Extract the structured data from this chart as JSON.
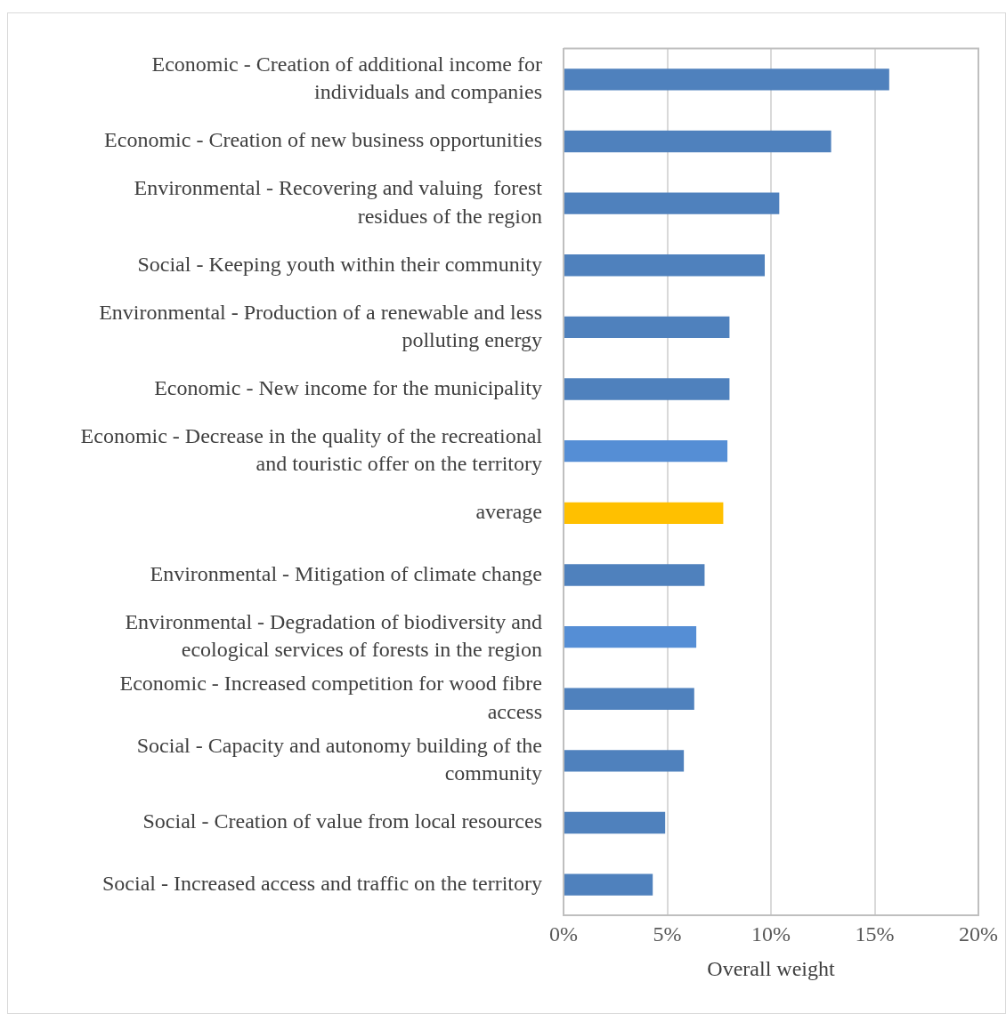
{
  "chart_data": {
    "type": "bar",
    "orientation": "horizontal",
    "xlabel": "Overall weight",
    "categories": [
      "Economic - Creation of additional income for individuals and companies",
      "Economic - Creation of new business opportunities",
      "Environmental - Recovering and valuing  forest residues of the region",
      "Social - Keeping youth within their community",
      "Environmental - Production of a renewable and less polluting energy",
      "Economic - New income for the municipality",
      "Economic - Decrease in the quality of the recreational and touristic offer on the territory",
      "average",
      "Environmental - Mitigation of climate change",
      "Environmental - Degradation of biodiversity and ecological services of forests in the region",
      "Economic - Increased competition for wood fibre access",
      "Social - Capacity and autonomy building of the community",
      "Social - Creation of value from local resources",
      "Social - Increased access and traffic on the territory"
    ],
    "values": [
      15.7,
      12.9,
      10.4,
      9.7,
      8.0,
      8.0,
      7.9,
      7.7,
      6.8,
      6.4,
      6.3,
      5.8,
      4.9,
      4.3
    ],
    "colors": [
      "#4f81bd",
      "#4f81bd",
      "#4f81bd",
      "#4f81bd",
      "#4f81bd",
      "#4f81bd",
      "#558ed5",
      "#ffc000",
      "#4f81bd",
      "#558ed5",
      "#4f81bd",
      "#4f81bd",
      "#4f81bd",
      "#4f81bd"
    ],
    "xlim": [
      0,
      20
    ],
    "xticks": [
      {
        "value": 0,
        "label": "0%"
      },
      {
        "value": 5,
        "label": "5%"
      },
      {
        "value": 10,
        "label": "10%"
      },
      {
        "value": 15,
        "label": "15%"
      },
      {
        "value": 20,
        "label": "20%"
      }
    ],
    "grid": "x"
  }
}
